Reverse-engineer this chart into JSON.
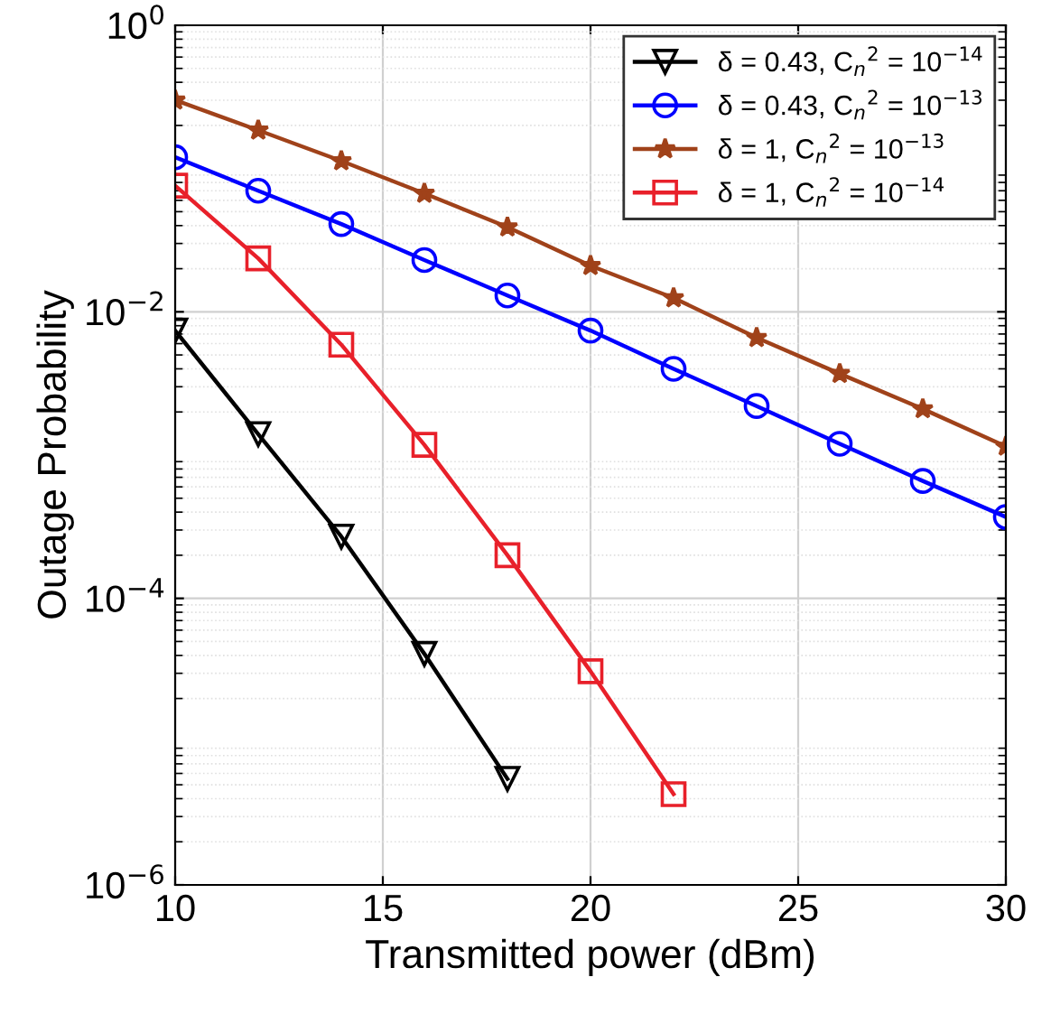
{
  "chart_data": {
    "type": "line",
    "xlabel": "Transmitted power (dBm)",
    "ylabel": "Outage Probability",
    "log": "y",
    "xlim": [
      10,
      30
    ],
    "xticks": [
      10,
      15,
      20,
      25,
      30
    ],
    "ylim": [
      1e-06,
      1
    ],
    "yticks": [
      {
        "value": 1,
        "label": "10$^{0}$"
      },
      {
        "value": 0.01,
        "label": "10$^{−2}$"
      },
      {
        "value": 0.0001,
        "label": "10$^{−4}$"
      },
      {
        "value": 1e-06,
        "label": "10$^{−6}$"
      }
    ],
    "grid": true,
    "legend": "top right",
    "series": [
      {
        "name": "δ = 0.43, C$_{n}$$^{2}$ = 10$^{−14}$",
        "color": "#000000",
        "marker": "triangle",
        "x": [
          10,
          12,
          14,
          16,
          18
        ],
        "values": [
          0.0074,
          0.0014,
          0.00027,
          4.1e-05,
          5.5e-06
        ]
      },
      {
        "name": "δ = 0.43, C$_{n}$$^{2}$ = 10$^{−13}$",
        "color": "#0000ff",
        "marker": "circle",
        "x": [
          10,
          12,
          14,
          16,
          18,
          20,
          22,
          24,
          26,
          28,
          30
        ],
        "values": [
          0.12,
          0.07,
          0.041,
          0.023,
          0.013,
          0.0074,
          0.004,
          0.0022,
          0.0012,
          0.00066,
          0.00037
        ]
      },
      {
        "name": "δ = 1, C$_{n}$$^{2}$ = 10$^{−13}$",
        "color": "#a0421a",
        "marker": "star",
        "x": [
          10,
          12,
          14,
          16,
          18,
          20,
          22,
          24,
          26,
          28,
          30
        ],
        "values": [
          0.3,
          0.185,
          0.113,
          0.067,
          0.039,
          0.021,
          0.0125,
          0.0066,
          0.0037,
          0.0021,
          0.00115
        ]
      },
      {
        "name": "δ = 1, C$_{n}$$^{2}$ = 10$^{−14}$",
        "color": "#e8202a",
        "marker": "square",
        "x": [
          10,
          12,
          14,
          16,
          18,
          20,
          22
        ],
        "values": [
          0.076,
          0.0236,
          0.0059,
          0.00118,
          0.0002,
          3.1e-05,
          4.3e-06
        ]
      }
    ]
  }
}
